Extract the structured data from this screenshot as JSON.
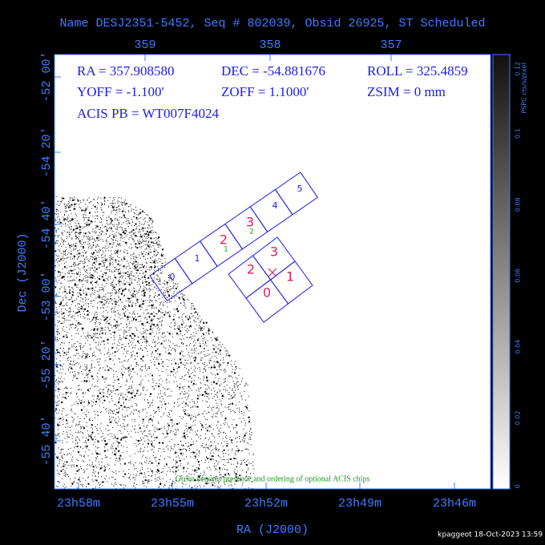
{
  "title": "Name DESJ2351-5452, Seq # 802039, Obsid 26925, ST Scheduled",
  "top_axis": {
    "ticks": [
      "359",
      "358",
      "357"
    ]
  },
  "left_axis": {
    "label": "Dec (J2000)",
    "ticks": [
      "-52 00'",
      "-54 20'",
      "-54 40'",
      "-53 00'",
      "-55 20'",
      "-55 40'"
    ]
  },
  "bottom_axis": {
    "label": "RA (J2000)",
    "ticks": [
      "23h58m",
      "23h55m",
      "23h52m",
      "23h49m",
      "23h46m"
    ]
  },
  "colorbar": {
    "label": "PSPC cts/s/pixel",
    "ticks": [
      "0.12",
      "0.1",
      "0.08",
      "0.06",
      "0.04",
      "0.02",
      "0"
    ]
  },
  "info": [
    [
      "RA = 357.908580",
      "DEC = -54.881676",
      "ROLL = 325.4859"
    ],
    [
      "YOFF =  -1.100'",
      "ZOFF =  1.1000'",
      "ZSIM = 0 mm"
    ],
    [
      "ACIS PB = WT007F4024"
    ]
  ],
  "acis_s": {
    "labels": [
      "0",
      "1",
      "2",
      "3",
      "4",
      "5"
    ],
    "optional": [
      "1",
      "2"
    ]
  },
  "acis_i": {
    "labels": [
      "0",
      "1",
      "2",
      "3"
    ]
  },
  "note": "Green denotes presence and ordering of optional ACIS chips",
  "footer": "kpaggeot 18-Oct-2023 13:59"
}
